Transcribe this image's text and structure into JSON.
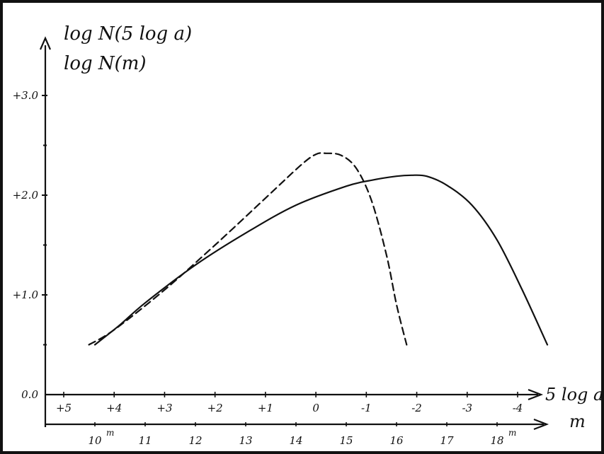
{
  "chart_data": {
    "type": "line",
    "y_axis_labels": [
      "log N(5 log a)",
      "log N(m)"
    ],
    "ylim": [
      0.0,
      3.5
    ],
    "y_ticks": [
      {
        "value": 0.0,
        "label": "0.0"
      },
      {
        "value": 1.0,
        "label": "+1.0"
      },
      {
        "value": 2.0,
        "label": "+2.0"
      },
      {
        "value": 3.0,
        "label": "+3.0"
      }
    ],
    "y_minor_ticks": [
      0.5,
      1.5,
      2.5
    ],
    "x_axis_top": {
      "name": "5 log a",
      "ticks": [
        {
          "value": 5,
          "label": "+5"
        },
        {
          "value": 4,
          "label": "+4"
        },
        {
          "value": 3,
          "label": "+3"
        },
        {
          "value": 2,
          "label": "+2"
        },
        {
          "value": 1,
          "label": "+1"
        },
        {
          "value": 0,
          "label": "0"
        },
        {
          "value": -1,
          "label": "-1"
        },
        {
          "value": -2,
          "label": "-2"
        },
        {
          "value": -3,
          "label": "-3"
        },
        {
          "value": -4,
          "label": "-4"
        }
      ]
    },
    "x_axis_bottom": {
      "name": "m",
      "ticks": [
        {
          "value": 10,
          "label": "10",
          "sup": "m"
        },
        {
          "value": 11,
          "label": "11"
        },
        {
          "value": 12,
          "label": "12"
        },
        {
          "value": 13,
          "label": "13"
        },
        {
          "value": 14,
          "label": "14"
        },
        {
          "value": 15,
          "label": "15"
        },
        {
          "value": 16,
          "label": "16"
        },
        {
          "value": 17,
          "label": "17"
        },
        {
          "value": 18,
          "label": "18",
          "sup": "m"
        }
      ]
    },
    "series": [
      {
        "axis": "x_axis_top",
        "style": "dashed",
        "x": [
          4.5,
          4.0,
          3.0,
          2.0,
          1.0,
          0.3,
          0.0,
          -0.2,
          -0.5,
          -0.8,
          -1.1,
          -1.4,
          -1.6,
          -1.8
        ],
        "y": [
          0.5,
          0.65,
          1.05,
          1.5,
          1.97,
          2.3,
          2.41,
          2.42,
          2.4,
          2.27,
          1.95,
          1.4,
          0.9,
          0.5
        ]
      },
      {
        "axis": "x_axis_bottom",
        "style": "solid",
        "x": [
          10.0,
          10.5,
          11.0,
          12.0,
          13.0,
          14.0,
          15.0,
          15.5,
          16.0,
          16.3,
          16.6,
          17.0,
          17.5,
          18.0,
          18.5,
          19.0
        ],
        "y": [
          0.5,
          0.7,
          0.92,
          1.3,
          1.62,
          1.9,
          2.09,
          2.15,
          2.19,
          2.2,
          2.19,
          2.1,
          1.9,
          1.55,
          1.05,
          0.5
        ]
      }
    ]
  }
}
